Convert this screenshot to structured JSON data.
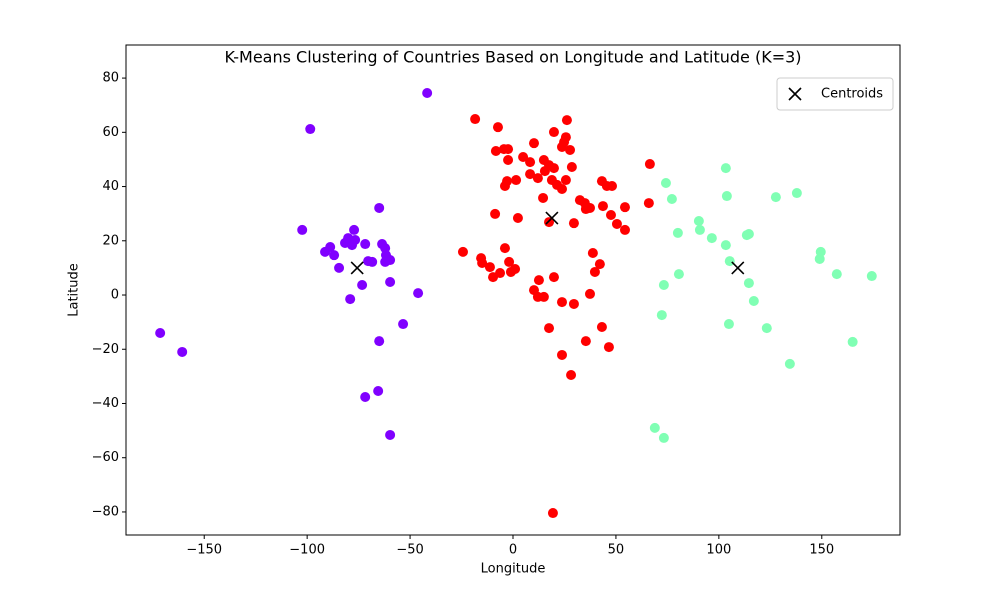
{
  "chart_data": {
    "type": "scatter",
    "title": "K-Means Clustering of Countries Based on Longitude and Latitude (K=3)",
    "x_label": "Longitude",
    "y_label": "Latitude",
    "xlim": [
      -188,
      188
    ],
    "ylim": [
      -88.5,
      92.2
    ],
    "xticks": [
      {
        "value": -150,
        "label": "−150"
      },
      {
        "value": -100,
        "label": "−100"
      },
      {
        "value": -50,
        "label": "−50"
      },
      0,
      50,
      100,
      150
    ],
    "yticks": [
      {
        "value": -80,
        "label": "−80"
      },
      {
        "value": -60,
        "label": "−60"
      },
      {
        "value": -40,
        "label": "−40"
      },
      {
        "value": -20,
        "label": "−20"
      },
      0,
      20,
      40,
      60,
      80
    ],
    "grid": false,
    "legend": "upper right",
    "series": [
      {
        "color": "#8000ff",
        "x": [
          -91.3,
          -88.8,
          -86.9,
          -84.5,
          -81.6,
          -80.1,
          -77.2,
          -78.2,
          -76.7,
          -71.8,
          -70.4,
          -68.4,
          -63.6,
          -62.1,
          -61.7,
          -62.1,
          -59.7,
          -59.7,
          -65.0,
          -53.4,
          -46.1,
          -73.3,
          -79.1,
          -65.0,
          -65.5,
          -71.8,
          -59.7,
          -41.7,
          -171.4,
          -160.7,
          -102.4,
          -98.5
        ],
        "y": [
          15.9,
          17.7,
          14.7,
          10.0,
          19.2,
          21.0,
          24.0,
          18.4,
          20.3,
          18.8,
          12.5,
          12.2,
          18.8,
          17.3,
          14.7,
          12.2,
          12.9,
          4.8,
          32.1,
          -10.7,
          0.7,
          3.7,
          -1.5,
          -17.0,
          -35.4,
          -37.6,
          -51.6,
          74.5,
          -14.0,
          -21.0,
          24.0,
          61.2
        ]
      },
      {
        "color": "#ff0000",
        "x": [
          -18.4,
          -7.3,
          26.2,
          19.9,
          25.7,
          24.8,
          10.2,
          23.8,
          -4.4,
          -2.4,
          -8.3,
          27.7,
          -2.4,
          4.9,
          8.3,
          15.0,
          17.5,
          19.9,
          28.6,
          8.3,
          12.1,
          15.5,
          1.5,
          -2.9,
          -3.9,
          18.9,
          21.4,
          23.8,
          25.7,
          66.5,
          43.2,
          45.6,
          48.1,
          14.6,
          32.5,
          34.9,
          35.4,
          37.4,
          43.7,
          54.4,
          66.0,
          47.6,
          50.5,
          54.4,
          29.6,
          17.5,
          2.4,
          -8.7,
          -24.3,
          -15.5,
          -15.0,
          -11.2,
          -9.7,
          -6.3,
          -3.9,
          -1.9,
          -1.0,
          1.0,
          38.8,
          42.2,
          39.8,
          37.4,
          12.6,
          19.9,
          10.2,
          12.1,
          15.0,
          23.8,
          29.6,
          43.2,
          17.5,
          35.4,
          46.6,
          23.8,
          28.2,
          19.4
        ],
        "y": [
          64.9,
          61.9,
          64.5,
          60.1,
          58.2,
          56.4,
          56.0,
          54.6,
          53.8,
          53.8,
          53.1,
          53.5,
          49.8,
          50.9,
          49.0,
          49.8,
          47.9,
          46.8,
          47.2,
          44.6,
          43.1,
          45.7,
          42.4,
          42.0,
          40.2,
          42.4,
          40.6,
          39.1,
          42.4,
          48.3,
          42.0,
          40.2,
          40.2,
          35.8,
          35.0,
          33.9,
          31.7,
          32.1,
          32.8,
          32.4,
          33.9,
          29.5,
          26.2,
          24.0,
          26.5,
          26.9,
          28.4,
          29.9,
          15.9,
          13.6,
          11.8,
          10.3,
          6.6,
          8.1,
          17.3,
          12.2,
          8.5,
          9.6,
          15.5,
          11.4,
          8.5,
          0.4,
          5.5,
          6.6,
          1.8,
          -0.7,
          -0.7,
          -2.6,
          -3.3,
          -11.8,
          -12.2,
          -17.0,
          -19.2,
          -22.1,
          -29.5,
          -80.4
        ]
      },
      {
        "color": "#80ffb4",
        "x": [
          103.4,
          74.3,
          137.9,
          77.2,
          103.9,
          127.7,
          90.3,
          80.1,
          90.8,
          96.6,
          103.4,
          113.6,
          114.6,
          105.3,
          149.5,
          149.0,
          157.3,
          174.3,
          80.6,
          73.3,
          114.6,
          117.0,
          104.9,
          123.3,
          72.3,
          165.0,
          134.5,
          68.9,
          73.3
        ],
        "y": [
          46.8,
          41.3,
          37.6,
          35.4,
          36.5,
          36.1,
          27.3,
          22.9,
          24.0,
          21.0,
          18.4,
          22.1,
          22.5,
          12.5,
          15.9,
          13.3,
          7.7,
          7.0,
          7.7,
          3.7,
          4.4,
          -2.2,
          -10.7,
          -12.2,
          -7.4,
          -17.3,
          -25.4,
          -49.0,
          -52.7
        ]
      },
      {
        "name": "Centroids",
        "marker": "x",
        "color": "#000000",
        "x": [
          -75.7,
          18.9,
          109.2
        ],
        "y": [
          10.0,
          28.4,
          10.0
        ]
      }
    ]
  }
}
